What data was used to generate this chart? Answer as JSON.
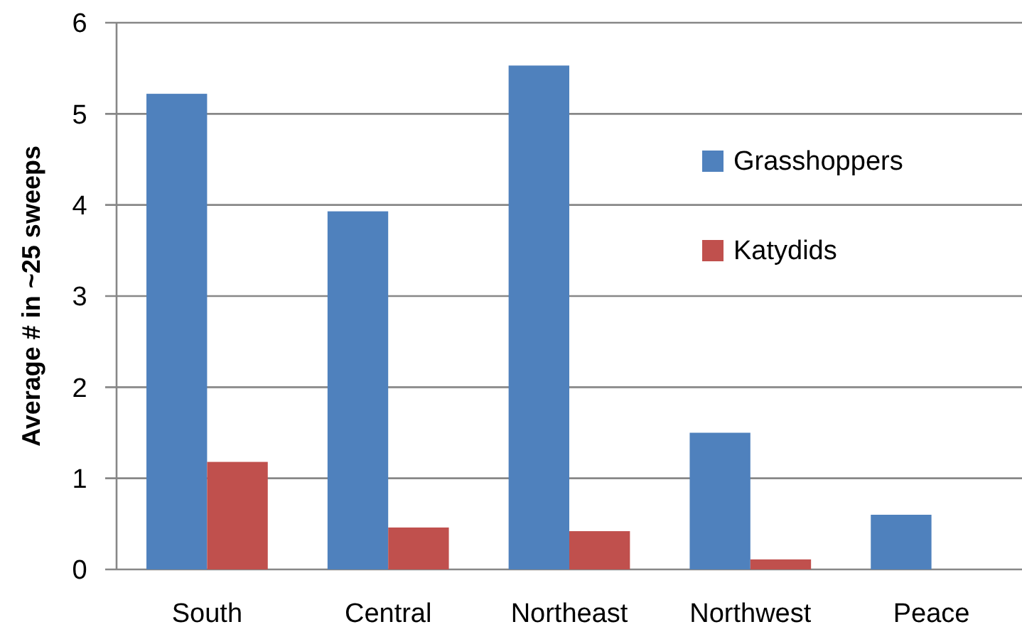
{
  "chart_data": {
    "type": "bar",
    "ylabel": "Average # in ~25 sweeps",
    "categories": [
      "South",
      "Central",
      "Northeast",
      "Northwest",
      "Peace"
    ],
    "series": [
      {
        "name": "Grasshoppers",
        "color": "#4f81bd",
        "values": [
          5.22,
          3.93,
          5.53,
          1.5,
          0.6
        ]
      },
      {
        "name": "Katydids",
        "color": "#c0504d",
        "values": [
          1.18,
          0.46,
          0.42,
          0.11,
          0
        ]
      }
    ],
    "ylim": [
      0,
      6
    ],
    "yticks": [
      0,
      1,
      2,
      3,
      4,
      5,
      6
    ],
    "grid": "y",
    "legend": "right"
  }
}
